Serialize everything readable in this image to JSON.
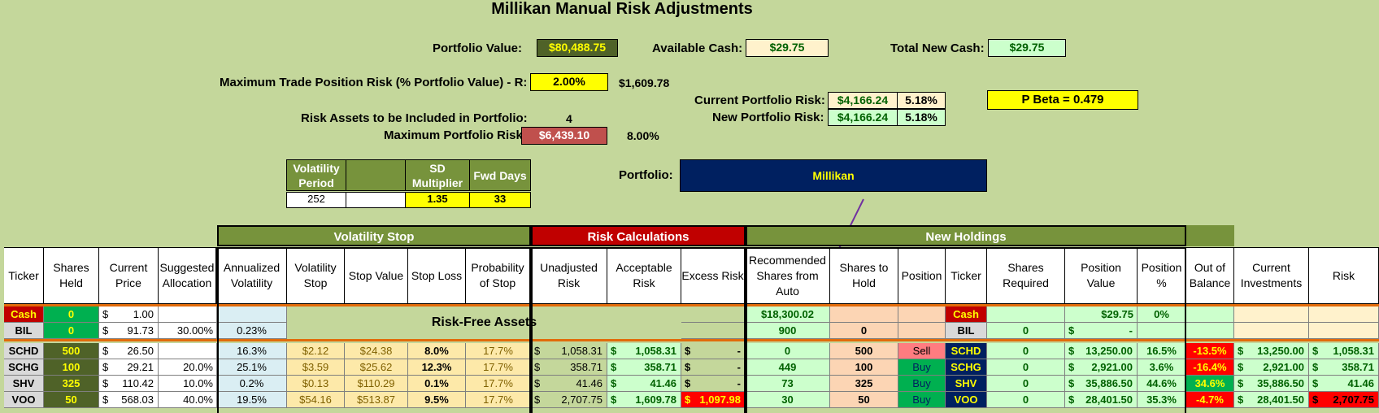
{
  "title": "Millikan Manual Risk Adjustments",
  "summary": {
    "portfolio_value_label": "Portfolio Value:",
    "portfolio_value": "$80,488.75",
    "available_cash_label": "Available Cash:",
    "available_cash": "$29.75",
    "total_new_cash_label": "Total New Cash:",
    "total_new_cash": "$29.75",
    "max_trade_risk_label": "Maximum Trade Position Risk (% Portfolio Value) - R:",
    "max_trade_risk_pct": "2.00%",
    "max_trade_risk_amt": "$1,609.78",
    "current_risk_label": "Current Portfolio Risk:",
    "current_risk_amt": "$4,166.24",
    "current_risk_pct": "5.18%",
    "new_risk_label": "New Portfolio Risk:",
    "new_risk_amt": "$4,166.24",
    "new_risk_pct": "5.18%",
    "p_beta": "P Beta = 0.479",
    "risk_assets_label": "Risk Assets to be Included in Portfolio:",
    "risk_assets_count": "4",
    "max_portfolio_risk_label": "Maximum Portfolio Risk:",
    "max_portfolio_risk_amt": "$6,439.10",
    "max_portfolio_risk_pct": "8.00%",
    "portfolio_label": "Portfolio:",
    "portfolio_name": "Millikan"
  },
  "vol_params": {
    "h1": "Volatility Period",
    "h2": "",
    "h3": "SD Multiplier",
    "h4": "Fwd Days",
    "v1": "252",
    "v2": "",
    "v3": "1.35",
    "v4": "33"
  },
  "groups": {
    "volatility_stop": "Volatility Stop",
    "risk_calculations": "Risk Calculations",
    "new_holdings": "New Holdings"
  },
  "headers": [
    "Ticker",
    "Shares Held",
    "Current Price",
    "Suggested Allocation",
    "Annualized Volatility",
    "Volatility Stop",
    "Stop Value",
    "Stop Loss",
    "Probability of Stop",
    "Unadjusted Risk",
    "Acceptable Risk",
    "Excess Risk",
    "Recommended Shares from Auto",
    "Shares to Hold",
    "Position",
    "Ticker",
    "Shares Required",
    "Position Value",
    "Position %",
    "Out of Balance",
    "Current Investments",
    "Risk"
  ],
  "risk_free_label": "Risk-Free Assets",
  "cash_rows": [
    {
      "ticker": "Cash",
      "shares": "0",
      "price_sym": "$",
      "price": "1.00",
      "alloc": "",
      "vol": "",
      "rec": "$18,300.02",
      "hold": "",
      "pos": "",
      "ticker2": "Cash",
      "req": "",
      "pv_sym": "",
      "pv": "$29.75",
      "pct": "0%"
    },
    {
      "ticker": "BIL",
      "shares": "0",
      "price_sym": "$",
      "price": "91.73",
      "alloc": "30.00%",
      "vol": "0.23%",
      "rec": "900",
      "hold": "0",
      "pos": "",
      "ticker2": "BIL",
      "req": "0",
      "pv_sym": "$",
      "pv": "-",
      "pct": ""
    }
  ],
  "rows": [
    {
      "ticker": "SCHD",
      "shares": "500",
      "price": "26.50",
      "alloc": "",
      "vol": "16.3%",
      "vstop": "$2.12",
      "sval": "$24.38",
      "sloss": "8.0%",
      "prob": "17.7%",
      "unadj": "1,058.31",
      "accept": "1,058.31",
      "excess": "-",
      "rec": "0",
      "hold": "500",
      "pos": "Sell",
      "req": "0",
      "pv": "13,250.00",
      "pct": "16.5%",
      "oob": "-13.5%",
      "cur": "13,250.00",
      "risk": "1,058.31"
    },
    {
      "ticker": "SCHG",
      "shares": "100",
      "price": "29.21",
      "alloc": "20.0%",
      "vol": "25.1%",
      "vstop": "$3.59",
      "sval": "$25.62",
      "sloss": "12.3%",
      "prob": "17.7%",
      "unadj": "358.71",
      "accept": "358.71",
      "excess": "-",
      "rec": "449",
      "hold": "100",
      "pos": "Buy",
      "req": "0",
      "pv": "2,921.00",
      "pct": "3.6%",
      "oob": "-16.4%",
      "cur": "2,921.00",
      "risk": "358.71"
    },
    {
      "ticker": "SHV",
      "shares": "325",
      "price": "110.42",
      "alloc": "10.0%",
      "vol": "0.2%",
      "vstop": "$0.13",
      "sval": "$110.29",
      "sloss": "0.1%",
      "prob": "17.7%",
      "unadj": "41.46",
      "accept": "41.46",
      "excess": "-",
      "rec": "73",
      "hold": "325",
      "pos": "Buy",
      "req": "0",
      "pv": "35,886.50",
      "pct": "44.6%",
      "oob": "34.6%",
      "cur": "35,886.50",
      "risk": "41.46"
    },
    {
      "ticker": "VOO",
      "shares": "50",
      "price": "568.03",
      "alloc": "40.0%",
      "vol": "19.5%",
      "vstop": "$54.16",
      "sval": "$513.87",
      "sloss": "9.5%",
      "prob": "17.7%",
      "unadj": "2,707.75",
      "accept": "1,609.78",
      "excess": "1,097.98",
      "rec": "30",
      "hold": "50",
      "pos": "Buy",
      "req": "0",
      "pv": "28,401.50",
      "pct": "35.3%",
      "oob": "-4.7%",
      "cur": "28,401.50",
      "risk": "2,707.75"
    }
  ],
  "colors": {
    "background": "#c4d79b",
    "header_green": "#77933c",
    "header_red": "#c00000",
    "navy": "#002060",
    "yellow": "#ffff00",
    "cream": "#fff2cc",
    "mint": "#ccffcc",
    "risk_red": "#c0504d"
  }
}
